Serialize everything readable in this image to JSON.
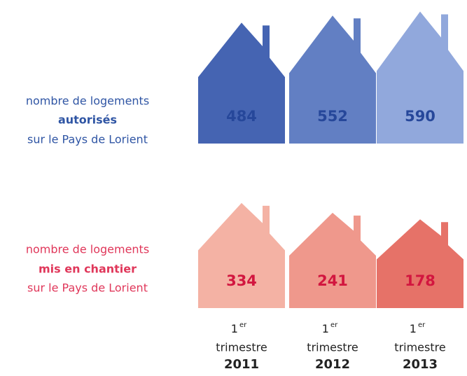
{
  "chart_data": {
    "type": "house",
    "period": {
      "ordinal": "1",
      "suffix": "er",
      "unit": "trimestre"
    },
    "categories": [
      "2011",
      "2012",
      "2013"
    ],
    "series": [
      {
        "label": [
          "nombre de logements",
          "autorisés",
          "sur le Pays de Lorient"
        ],
        "text_color": "#2f55a4",
        "value_color": "#26479a",
        "colors": [
          "#3b5cae",
          "#5a78c0",
          "#8ba3da"
        ],
        "values": [
          484,
          552,
          590
        ]
      },
      {
        "label": [
          "nombre de logements",
          "mis en chantier",
          "sur le Pays de Lorient"
        ],
        "text_color": "#e0375a",
        "value_color": "#d2163f",
        "colors": [
          "#f3ae9f",
          "#ee9286",
          "#e56a60"
        ],
        "values": [
          334,
          241,
          178
        ]
      }
    ]
  }
}
